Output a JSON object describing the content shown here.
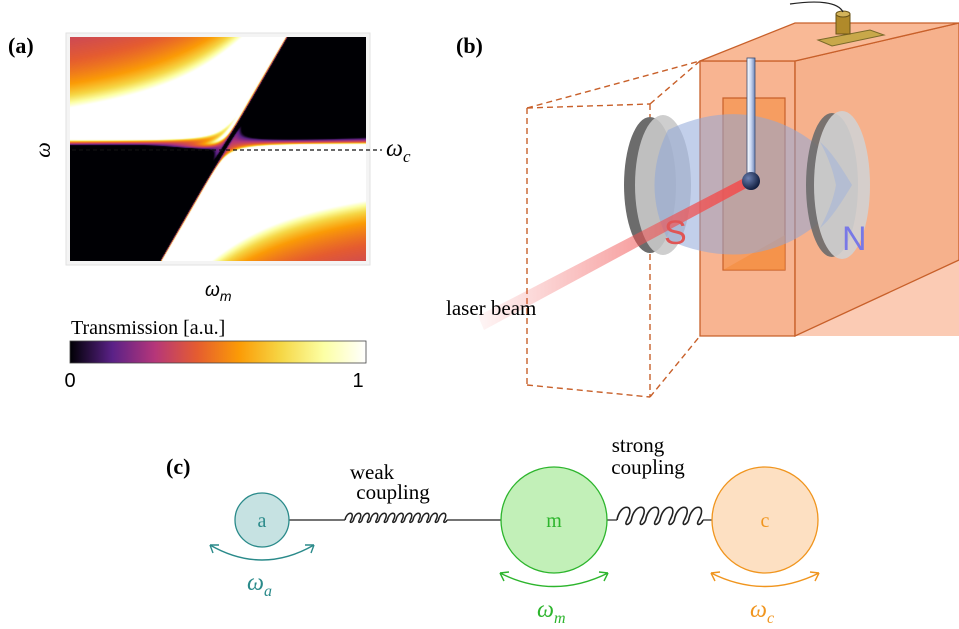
{
  "panel_a": {
    "label": "(a)",
    "y_axis_label": "ω",
    "x_axis_main": "ω",
    "x_axis_sub": "m",
    "line_label_main": "ω",
    "line_label_sub": "c",
    "colorbar": {
      "title": "Transmission [a.u.]",
      "min_label": "0",
      "max_label": "1",
      "stops": [
        "#000004",
        "#5a2187",
        "#b5367a",
        "#e55c30",
        "#fb9b06",
        "#f6d746",
        "#fcffa4",
        "#ffffff"
      ]
    }
  },
  "panel_b": {
    "label": "(b)",
    "laser_label": "laser beam",
    "magnet_south": "S",
    "magnet_north": "N",
    "colors": {
      "box": "#f59e6e",
      "edge": "#c8602a",
      "beam": "#f05050",
      "south": "#e05555",
      "north": "#7878e6"
    }
  },
  "panel_c": {
    "label": "(c)",
    "oscillators": [
      {
        "id": "a",
        "label": "a",
        "freq_main": "ω",
        "freq_sub": "a",
        "color": "#2a8a8a",
        "fill": "#c6e2e2"
      },
      {
        "id": "m",
        "label": "m",
        "freq_main": "ω",
        "freq_sub": "m",
        "color": "#2db52d",
        "fill": "#c2f0b8"
      },
      {
        "id": "c",
        "label": "c",
        "freq_main": "ω",
        "freq_sub": "c",
        "color": "#f0951e",
        "fill": "#fde0c2"
      }
    ],
    "weak_coupling": [
      "weak",
      "coupling"
    ],
    "strong_coupling": [
      "strong",
      "coupling"
    ]
  }
}
